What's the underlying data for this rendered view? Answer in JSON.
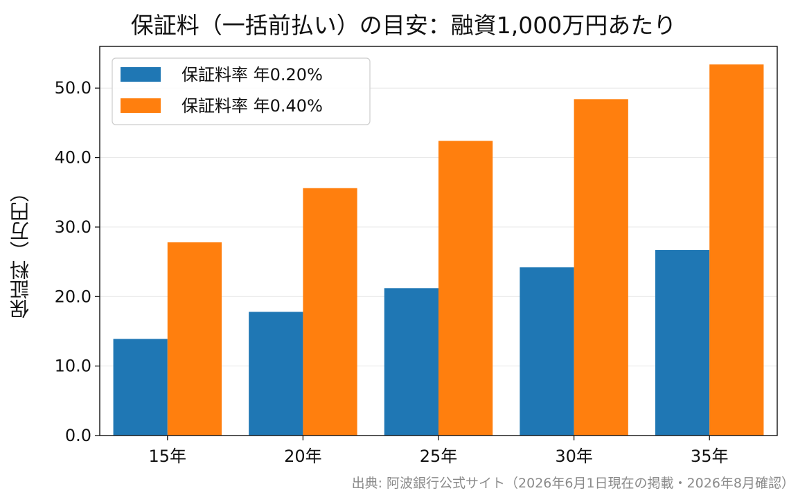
{
  "chart_data": {
    "type": "bar",
    "title": "保証料（一括前払い）の目安：融資1,000万円あたり",
    "xlabel": "",
    "ylabel": "保証料（万円）",
    "categories": [
      "15年",
      "20年",
      "25年",
      "30年",
      "35年"
    ],
    "series": [
      {
        "name": "保証料率 年0.20%",
        "color": "#1f77b4",
        "values": [
          13.9,
          17.8,
          21.2,
          24.2,
          26.7
        ]
      },
      {
        "name": "保証料率 年0.40%",
        "color": "#ff7f0e",
        "values": [
          27.8,
          35.6,
          42.4,
          48.4,
          53.4
        ]
      }
    ],
    "ylim": [
      0,
      56
    ],
    "yticks": [
      "0.0",
      "10.0",
      "20.0",
      "30.0",
      "40.0",
      "50.0"
    ],
    "grid": "horizontal",
    "legend_position": "top-left",
    "source": "出典: 阿波銀行公式サイト（2026年6月1日現在の掲載・2026年8月確認）"
  }
}
